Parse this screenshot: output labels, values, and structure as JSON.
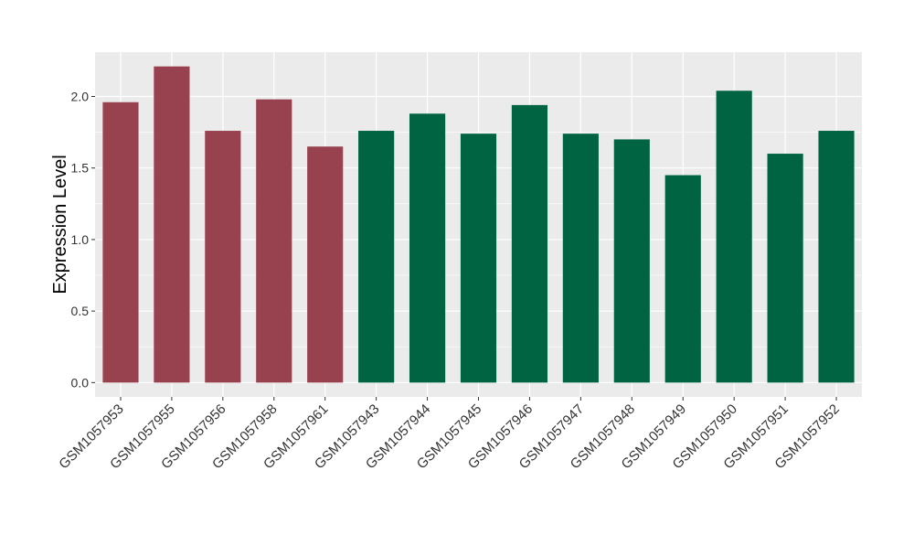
{
  "chart_data": {
    "type": "bar",
    "title": "",
    "xlabel": "",
    "ylabel": "Expression Level",
    "ylim": [
      -0.1,
      2.31
    ],
    "yticks": [
      0.0,
      0.5,
      1.0,
      1.5,
      2.0
    ],
    "ytick_labels": [
      "0.0",
      "0.5",
      "1.0",
      "1.5",
      "2.0"
    ],
    "grid": true,
    "panel_color": "#ebebeb",
    "grid_color": "#ffffff",
    "categories": [
      "GSM1057953",
      "GSM1057955",
      "GSM1057956",
      "GSM1057958",
      "GSM1057961",
      "GSM1057943",
      "GSM1057944",
      "GSM1057945",
      "GSM1057946",
      "GSM1057947",
      "GSM1057948",
      "GSM1057949",
      "GSM1057950",
      "GSM1057951",
      "GSM1057952"
    ],
    "values": [
      1.96,
      2.21,
      1.76,
      1.98,
      1.65,
      1.76,
      1.88,
      1.74,
      1.94,
      1.74,
      1.7,
      1.45,
      2.04,
      1.6,
      1.76
    ],
    "bar_colors": [
      "#99424f",
      "#99424f",
      "#99424f",
      "#99424f",
      "#99424f",
      "#006442",
      "#006442",
      "#006442",
      "#006442",
      "#006442",
      "#006442",
      "#006442",
      "#006442",
      "#006442",
      "#006442"
    ]
  }
}
